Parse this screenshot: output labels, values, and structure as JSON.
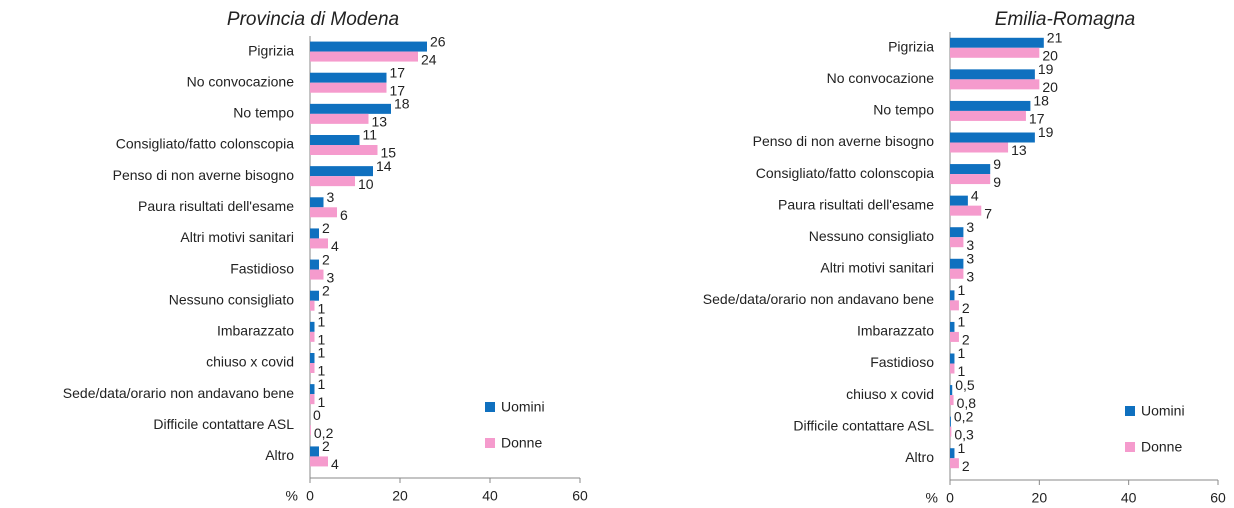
{
  "chart_data": [
    {
      "type": "bar",
      "orientation": "horizontal",
      "title": "Provincia di Modena",
      "x_label": "%",
      "categories": [
        "Pigrizia",
        "No convocazione",
        "No tempo",
        "Consigliato/fatto colonscopia",
        "Penso di non averne bisogno",
        "Paura risultati dell'esame",
        "Altri motivi sanitari",
        "Fastidioso",
        "Nessuno consigliato",
        "Imbarazzato",
        "chiuso x covid",
        "Sede/data/orario non andavano bene",
        "Difficile contattare ASL",
        "Altro"
      ],
      "series": [
        {
          "name": "Uomini",
          "color": "#0f70bf",
          "values": [
            26,
            17,
            18,
            11,
            14,
            3,
            2,
            2,
            2,
            1,
            1,
            1,
            0,
            2
          ]
        },
        {
          "name": "Donne",
          "color": "#f59bcd",
          "values": [
            24,
            17,
            13,
            15,
            10,
            6,
            4,
            3,
            1,
            1,
            1,
            1,
            0.2,
            4
          ],
          "value_labels": [
            "24",
            "17",
            "13",
            "15",
            "10",
            "6",
            "4",
            "3",
            "1",
            "1",
            "1",
            "1",
            "0,2",
            "4"
          ]
        }
      ],
      "xlim": [
        0,
        60
      ],
      "xticks": [
        0,
        20,
        40,
        60
      ]
    },
    {
      "type": "bar",
      "orientation": "horizontal",
      "title": "Emilia-Romagna",
      "x_label": "%",
      "categories": [
        "Pigrizia",
        "No convocazione",
        "No tempo",
        "Penso di non averne bisogno",
        "Consigliato/fatto colonscopia",
        "Paura risultati dell'esame",
        "Nessuno consigliato",
        "Altri motivi sanitari",
        "Sede/data/orario non andavano bene",
        "Imbarazzato",
        "Fastidioso",
        "chiuso x covid",
        "Difficile contattare ASL",
        "Altro"
      ],
      "series": [
        {
          "name": "Uomini",
          "color": "#0f70bf",
          "values": [
            21,
            19,
            18,
            19,
            9,
            4,
            3,
            3,
            1,
            1,
            1,
            0.5,
            0.2,
            1
          ],
          "value_labels": [
            "21",
            "19",
            "18",
            "19",
            "9",
            "4",
            "3",
            "3",
            "1",
            "1",
            "1",
            "0,5",
            "0,2",
            "1"
          ]
        },
        {
          "name": "Donne",
          "color": "#f59bcd",
          "values": [
            20,
            20,
            17,
            13,
            9,
            7,
            3,
            3,
            2,
            2,
            1,
            0.8,
            0.3,
            2
          ],
          "value_labels": [
            "20",
            "20",
            "17",
            "13",
            "9",
            "7",
            "3",
            "3",
            "2",
            "2",
            "1",
            "0,8",
            "0,3",
            "2"
          ]
        }
      ],
      "xlim": [
        0,
        60
      ],
      "xticks": [
        0,
        20,
        40,
        60
      ]
    }
  ]
}
